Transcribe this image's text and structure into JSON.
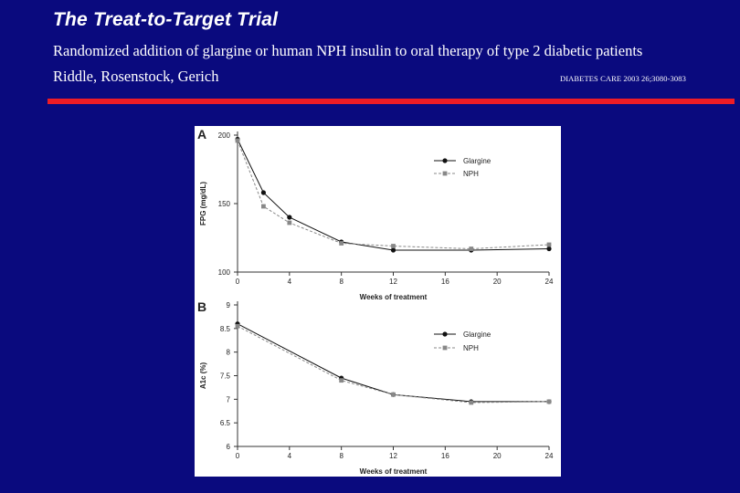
{
  "slide": {
    "title": "The Treat-to-Target Trial",
    "subtitle": "Randomized addition of glargine or human NPH insulin to oral therapy of type 2 diabetic patients",
    "authors": "Riddle, Rosenstock, Gerich",
    "citation": "DIABETES CARE 2003 26;3080-3083"
  },
  "colors": {
    "background": "#0a0a7e",
    "accent_bar": "#ee1c25",
    "glargine": "#111111",
    "nph": "#888888"
  },
  "chart_data": [
    {
      "panel": "A",
      "type": "line",
      "xlabel": "Weeks of treatment",
      "ylabel": "FPG (mg/dL)",
      "xlim": [
        0,
        24
      ],
      "ylim": [
        100,
        200
      ],
      "xticks": [
        0,
        4,
        8,
        12,
        16,
        20,
        24
      ],
      "yticks": [
        100,
        150,
        200
      ],
      "legend": "top-right",
      "series": [
        {
          "name": "Glargine",
          "x": [
            0,
            2,
            4,
            8,
            12,
            18,
            24
          ],
          "values": [
            197,
            158,
            140,
            122,
            116,
            116,
            117
          ]
        },
        {
          "name": "NPH",
          "x": [
            0,
            2,
            4,
            8,
            12,
            18,
            24
          ],
          "values": [
            196,
            148,
            136,
            121,
            119,
            117,
            120
          ]
        }
      ]
    },
    {
      "panel": "B",
      "type": "line",
      "xlabel": "Weeks of treatment",
      "ylabel": "A1c (%)",
      "xlim": [
        0,
        24
      ],
      "ylim": [
        6,
        9
      ],
      "xticks": [
        0,
        4,
        8,
        12,
        16,
        20,
        24
      ],
      "yticks": [
        6,
        6.5,
        7,
        7.5,
        8,
        8.5,
        9
      ],
      "legend": "top-right",
      "series": [
        {
          "name": "Glargine",
          "x": [
            0,
            8,
            12,
            18,
            24
          ],
          "values": [
            8.6,
            7.45,
            7.1,
            6.95,
            6.95
          ]
        },
        {
          "name": "NPH",
          "x": [
            0,
            8,
            12,
            18,
            24
          ],
          "values": [
            8.55,
            7.4,
            7.1,
            6.93,
            6.95
          ]
        }
      ]
    }
  ]
}
